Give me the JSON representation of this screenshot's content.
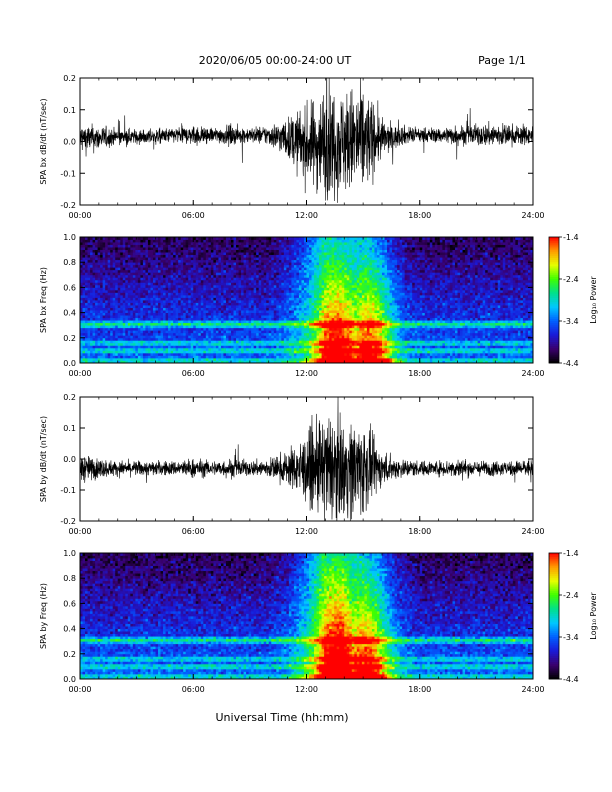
{
  "header": {
    "title": "2020/06/05  00:00-24:00 UT",
    "page": "Page 1/1"
  },
  "footer": {
    "xlabel": "Universal Time (hh:mm)"
  },
  "colors": {
    "trace": "#000000",
    "colormap": [
      "#000000",
      "#3a006e",
      "#1a1ad8",
      "#0060ff",
      "#00c8ff",
      "#00e08a",
      "#40ff00",
      "#e8ff00",
      "#ff9a00",
      "#ff0000"
    ]
  },
  "chart_data": [
    {
      "type": "line",
      "ylabel": "SPA bx dB/dt (nT/sec)",
      "xlim": [
        0,
        24
      ],
      "ylim": [
        -0.2,
        0.2
      ],
      "xticks": [
        "00:00",
        "06:00",
        "12:00",
        "18:00",
        "24:00"
      ],
      "yticks": [
        "-0.2",
        "-0.1",
        "0.0",
        "0.1",
        "0.2"
      ],
      "x_unit": "hours UT",
      "series": [
        {
          "x": [
            0,
            1,
            2,
            3,
            4,
            5,
            6,
            7,
            8,
            9,
            10,
            11,
            11.5,
            12,
            12.5,
            13,
            13.5,
            14,
            14.5,
            15,
            15.5,
            16,
            16.5,
            17,
            18,
            19,
            20,
            21,
            22,
            23,
            24
          ],
          "baseline": [
            0.01,
            0.01,
            0.015,
            0.015,
            0.015,
            0.02,
            0.02,
            0.02,
            0.02,
            0.02,
            0.02,
            0.01,
            0.0,
            -0.01,
            -0.01,
            0.0,
            0.0,
            0.0,
            0.0,
            0.0,
            0.01,
            0.01,
            0.01,
            0.02,
            0.02,
            0.02,
            0.02,
            0.02,
            0.02,
            0.02,
            0.02
          ],
          "amplitude": [
            0.06,
            0.05,
            0.03,
            0.03,
            0.03,
            0.03,
            0.04,
            0.03,
            0.04,
            0.03,
            0.04,
            0.08,
            0.12,
            0.15,
            0.18,
            0.22,
            0.22,
            0.2,
            0.22,
            0.22,
            0.15,
            0.08,
            0.05,
            0.04,
            0.03,
            0.03,
            0.04,
            0.04,
            0.05,
            0.04,
            0.04
          ]
        }
      ]
    },
    {
      "type": "heatmap",
      "ylabel": "SPA bx Freq (Hz)",
      "colorbar_label": "Log₁₀ Power",
      "colorbar_ticks": [
        "-1.4",
        "-2.4",
        "-3.4",
        "-4.4"
      ],
      "clim": [
        -4.4,
        -1.4
      ],
      "xlim": [
        0,
        24
      ],
      "ylim": [
        0.0,
        1.0
      ],
      "xticks": [
        "00:00",
        "06:00",
        "12:00",
        "18:00",
        "24:00"
      ],
      "yticks": [
        "0.0",
        "0.2",
        "0.4",
        "0.6",
        "0.8",
        "1.0"
      ],
      "x": [
        0,
        2,
        4,
        6,
        8,
        10,
        11,
        12,
        13,
        14,
        15,
        16,
        17,
        18,
        20,
        22,
        24
      ],
      "background_log_power": [
        -3.9,
        -3.9,
        -3.9,
        -3.9,
        -3.9,
        -3.9,
        -3.7,
        -3.3,
        -2.7,
        -2.9,
        -2.9,
        -3.3,
        -3.7,
        -3.9,
        -3.9,
        -3.9,
        -3.9
      ],
      "event_peak_hours": [
        13.7,
        15.5
      ],
      "line_frequencies_hz": [
        0.3,
        0.32,
        0.16,
        0.1
      ]
    },
    {
      "type": "line",
      "ylabel": "SPA by dB/dt (nT/sec)",
      "xlim": [
        0,
        24
      ],
      "ylim": [
        -0.2,
        0.2
      ],
      "xticks": [
        "00:00",
        "06:00",
        "12:00",
        "18:00",
        "24:00"
      ],
      "yticks": [
        "-0.2",
        "-0.1",
        "0.0",
        "0.1",
        "0.2"
      ],
      "x_unit": "hours UT",
      "series": [
        {
          "x": [
            0,
            1,
            2,
            3,
            4,
            5,
            6,
            7,
            8,
            9,
            10,
            11,
            11.5,
            12,
            12.5,
            13,
            13.5,
            14,
            14.5,
            15,
            15.5,
            16,
            16.5,
            17,
            18,
            19,
            20,
            21,
            22,
            23,
            24
          ],
          "baseline": [
            -0.03,
            -0.03,
            -0.03,
            -0.03,
            -0.03,
            -0.03,
            -0.03,
            -0.03,
            -0.03,
            -0.03,
            -0.03,
            -0.03,
            -0.03,
            -0.03,
            -0.03,
            -0.03,
            -0.03,
            -0.03,
            -0.03,
            -0.03,
            -0.03,
            -0.03,
            -0.03,
            -0.03,
            -0.03,
            -0.03,
            -0.03,
            -0.03,
            -0.03,
            -0.03,
            -0.03
          ],
          "amplitude": [
            0.06,
            0.04,
            0.03,
            0.03,
            0.03,
            0.03,
            0.04,
            0.03,
            0.04,
            0.03,
            0.04,
            0.07,
            0.1,
            0.14,
            0.18,
            0.22,
            0.22,
            0.2,
            0.2,
            0.2,
            0.12,
            0.07,
            0.05,
            0.04,
            0.03,
            0.03,
            0.04,
            0.03,
            0.03,
            0.03,
            0.04
          ]
        }
      ]
    },
    {
      "type": "heatmap",
      "ylabel": "SPA by Freq (Hz)",
      "colorbar_label": "Log₁₀ Power",
      "colorbar_ticks": [
        "-1.4",
        "-2.4",
        "-3.4",
        "-4.4"
      ],
      "clim": [
        -4.4,
        -1.4
      ],
      "xlim": [
        0,
        24
      ],
      "ylim": [
        0.0,
        1.0
      ],
      "xticks": [
        "00:00",
        "06:00",
        "12:00",
        "18:00",
        "24:00"
      ],
      "yticks": [
        "0.0",
        "0.2",
        "0.4",
        "0.6",
        "0.8",
        "1.0"
      ],
      "x": [
        0,
        2,
        4,
        6,
        8,
        10,
        11,
        12,
        13,
        14,
        15,
        16,
        17,
        18,
        20,
        22,
        24
      ],
      "background_log_power": [
        -3.9,
        -3.9,
        -3.9,
        -3.9,
        -3.9,
        -3.9,
        -3.7,
        -3.2,
        -2.5,
        -2.6,
        -2.9,
        -3.3,
        -3.7,
        -3.9,
        -3.9,
        -3.9,
        -3.9
      ],
      "event_peak_hours": [
        13.7,
        15.3
      ],
      "line_frequencies_hz": [
        0.3,
        0.32,
        0.16,
        0.1
      ]
    }
  ]
}
